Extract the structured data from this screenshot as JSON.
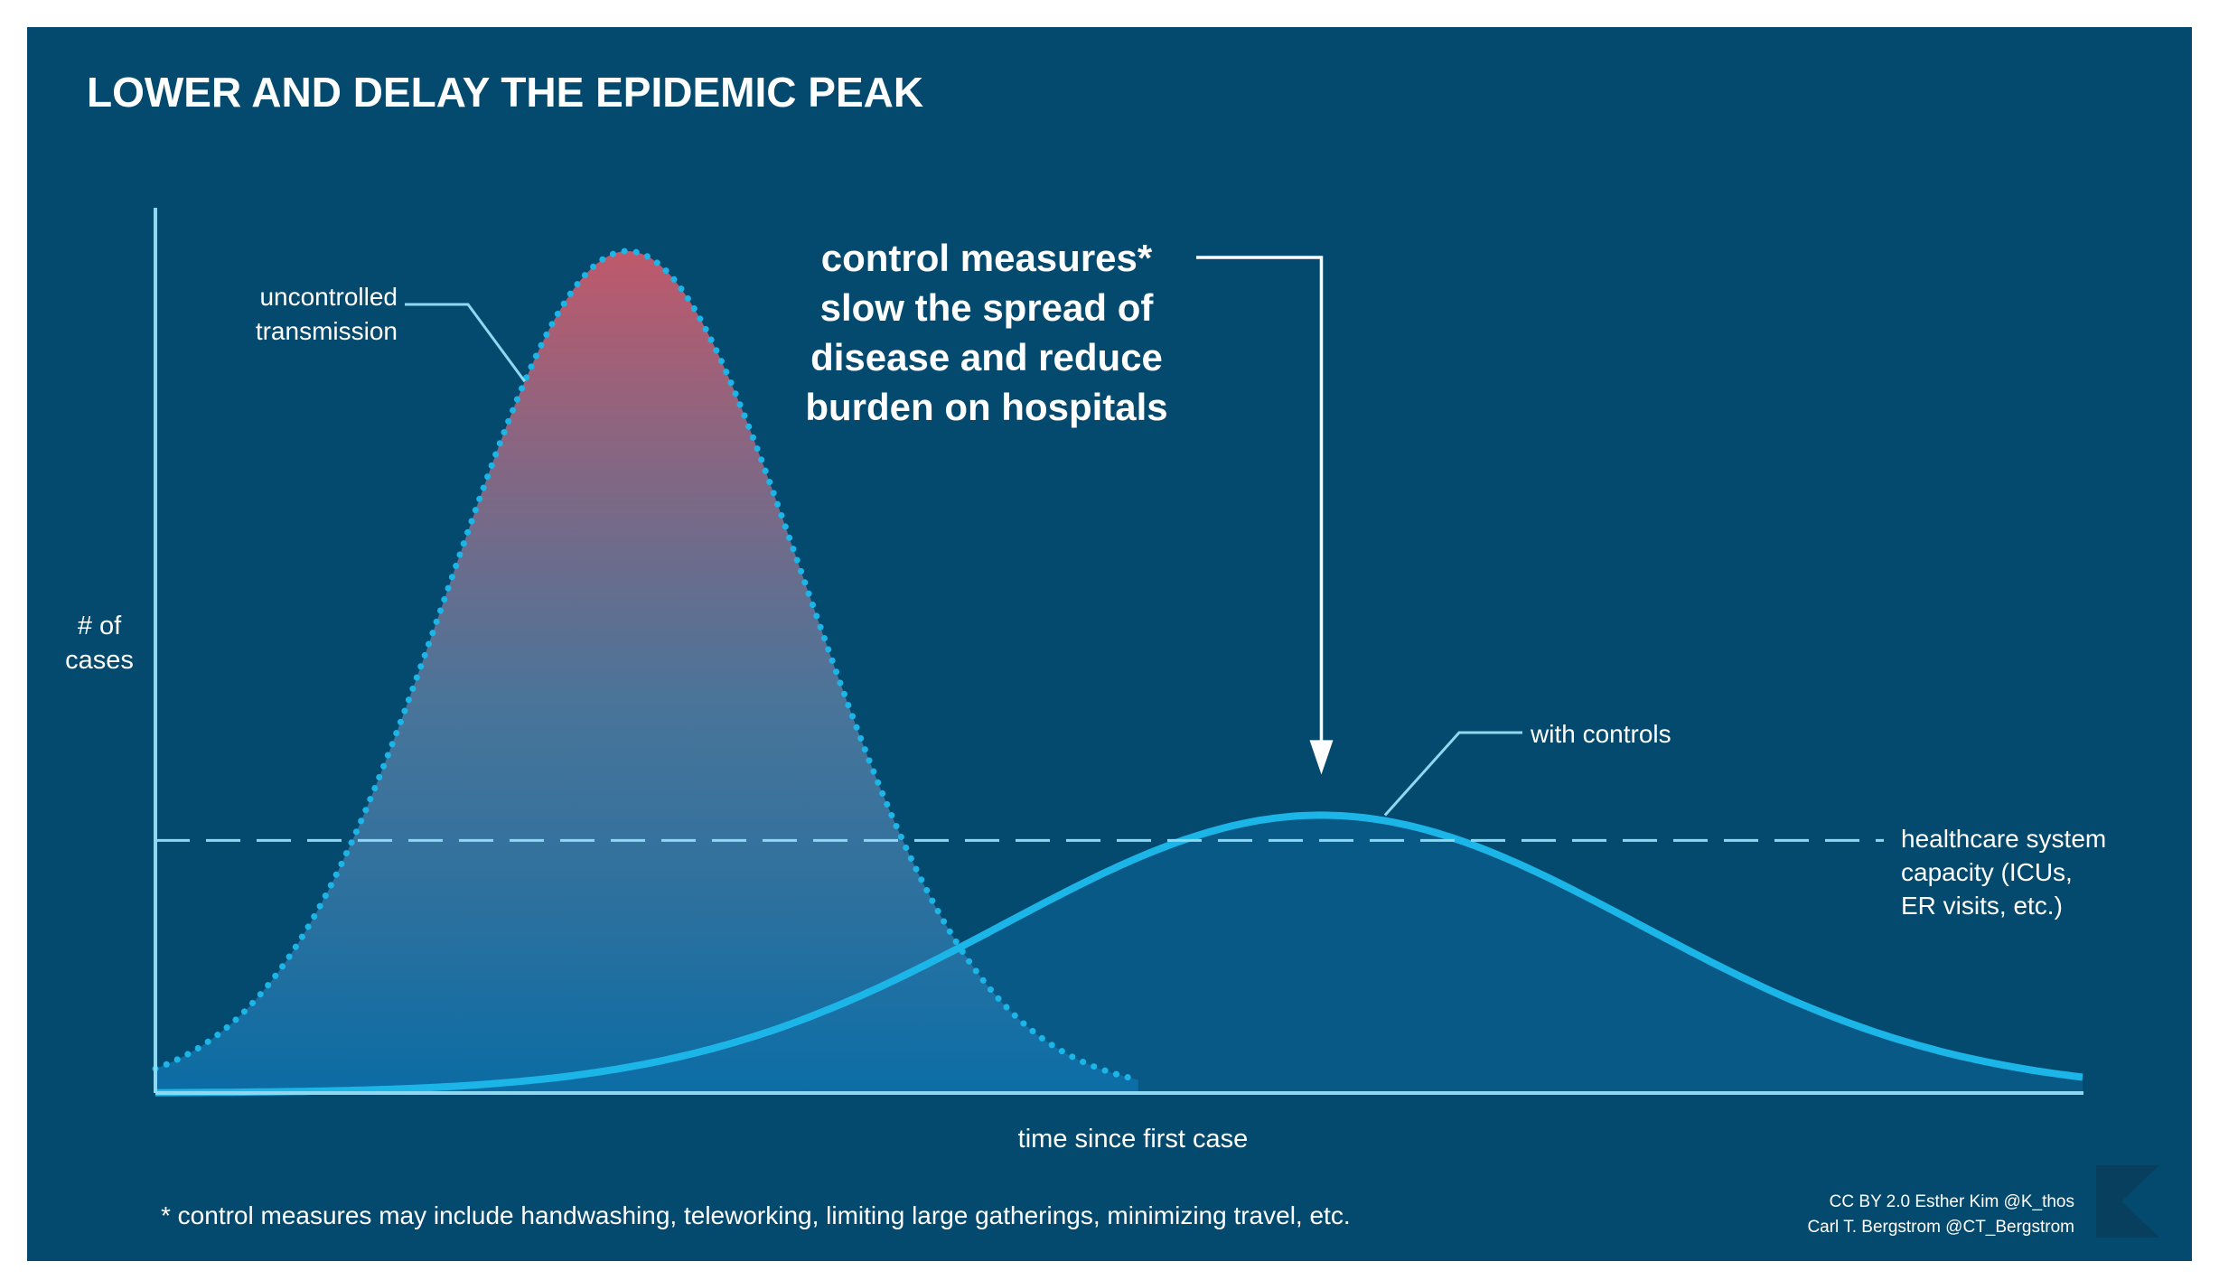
{
  "chart_data": {
    "type": "area",
    "title": "LOWER AND DELAY THE EPIDEMIC PEAK",
    "xlabel": "time since first case",
    "ylabel_lines": [
      "# of",
      "cases"
    ],
    "series": [
      {
        "name_lines": [
          "uncontrolled",
          "transmission"
        ],
        "peak_x": 0.245,
        "sigma": 0.092,
        "peak_y": 1.0
      },
      {
        "name_lines": [
          "with controls"
        ],
        "peak_x": 0.605,
        "sigma": 0.165,
        "peak_y": 0.33
      }
    ],
    "capacity_line": {
      "y": 0.3,
      "label_lines": [
        "healthcare system",
        "capacity (ICUs,",
        "ER visits, etc.)"
      ]
    },
    "annotation": {
      "lines": [
        "control measures*",
        "slow the spread of",
        "disease and reduce",
        "burden on hospitals"
      ]
    },
    "footnote": "* control measures may include handwashing, teleworking, limiting large gatherings, minimizing travel, etc.",
    "credits": [
      "CC BY 2.0  Esther  Kim  @K_thos",
      "Carl T. Bergstrom  @CT_Bergstrom"
    ],
    "colors": {
      "background": "#044a6e",
      "axis": "#8fd8f2",
      "uncontrolled_top": "#d05a6b",
      "uncontrolled_bottom": "#0b6fa8",
      "controlled_line": "#1cb5e8",
      "controlled_fill": "#0a5f8e",
      "text": "#ffffff"
    }
  }
}
